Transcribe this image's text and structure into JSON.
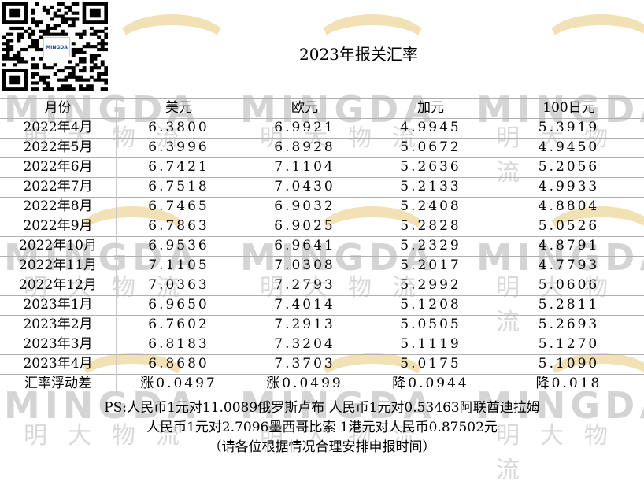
{
  "qr_logo_text": "MINGDA",
  "title": "2023年报关汇率",
  "headers": [
    "月份",
    "美元",
    "欧元",
    "加元",
    "100日元"
  ],
  "rows": [
    [
      "2022年4月",
      "6.3800",
      "6.9921",
      "4.9945",
      "5.3919"
    ],
    [
      "2022年5月",
      "6.3996",
      "6.8928",
      "5.0672",
      "4.9450"
    ],
    [
      "2022年6月",
      "6.7421",
      "7.1104",
      "5.2636",
      "5.2056"
    ],
    [
      "2022年7月",
      "6.7518",
      "7.0430",
      "5.2133",
      "4.9933"
    ],
    [
      "2022年8月",
      "6.7465",
      "6.9032",
      "5.2408",
      "4.8804"
    ],
    [
      "2022年9月",
      "6.7863",
      "6.9025",
      "5.2828",
      "5.0526"
    ],
    [
      "2022年10月",
      "6.9536",
      "6.9641",
      "5.2329",
      "4.8791"
    ],
    [
      "2022年11月",
      "7.1105",
      "7.0308",
      "5.2017",
      "4.7793"
    ],
    [
      "2022年12月",
      "7.0363",
      "7.2793",
      "5.2992",
      "5.0606"
    ],
    [
      "2023年1月",
      "6.9650",
      "7.4014",
      "5.1208",
      "5.2811"
    ],
    [
      "2023年2月",
      "6.7602",
      "7.2913",
      "5.0505",
      "5.2693"
    ],
    [
      "2023年3月",
      "6.8183",
      "7.3204",
      "5.1119",
      "5.1270"
    ],
    [
      "2023年4月",
      "6.8680",
      "7.3703",
      "5.0175",
      "5.1090"
    ]
  ],
  "summary": [
    "汇率浮动差",
    "涨0.0497",
    "涨0.0499",
    "降0.0944",
    "降0.018"
  ],
  "notes": {
    "line1": "PS:人民币1元对11.0089俄罗斯卢布   人民币1元对0.53463阿联酋迪拉姆",
    "line2": "人民币1元对2.7096墨西哥比索   1港元对人民币0.87502元",
    "line3": "（请各位根据情况合理安排申报时间）"
  },
  "watermark": {
    "word": "MINGDA",
    "cn": "明大物流"
  }
}
